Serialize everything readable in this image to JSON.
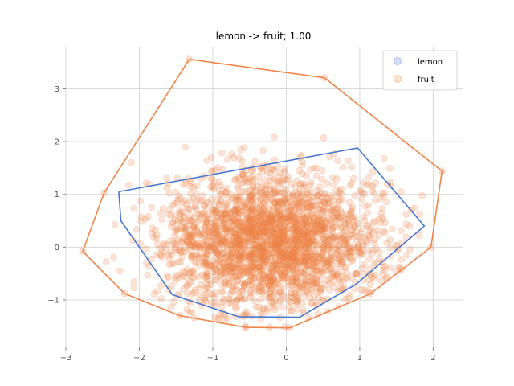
{
  "chart_data": {
    "type": "scatter",
    "title": "lemon -> fruit; 1.00",
    "xlabel": "",
    "ylabel": "",
    "xlim": [
      -3,
      2.4
    ],
    "ylim": [
      -1.9,
      3.8
    ],
    "xticks": [
      -3,
      -2,
      -1,
      0,
      1,
      2
    ],
    "yticks": [
      -1,
      0,
      1,
      2,
      3
    ],
    "grid": true,
    "legend": {
      "placement": "top-right"
    },
    "series": [
      {
        "name": "lemon",
        "color": "#4878cf",
        "hull": [
          [
            -2.28,
            1.05
          ],
          [
            0.97,
            1.88
          ],
          [
            1.88,
            0.4
          ],
          [
            0.95,
            -0.7
          ],
          [
            0.18,
            -1.33
          ],
          [
            -0.65,
            -1.32
          ],
          [
            -1.55,
            -0.9
          ],
          [
            -2.25,
            0.5
          ],
          [
            -2.28,
            1.05
          ]
        ],
        "points": []
      },
      {
        "name": "fruit",
        "color": "#ee854a",
        "hull": [
          [
            -1.32,
            3.56
          ],
          [
            0.52,
            3.21
          ],
          [
            2.12,
            1.44
          ],
          [
            1.97,
            0.0
          ],
          [
            1.15,
            -0.88
          ],
          [
            0.05,
            -1.53
          ],
          [
            -0.55,
            -1.52
          ],
          [
            -1.45,
            -1.3
          ],
          [
            -2.2,
            -0.88
          ],
          [
            -2.77,
            -0.08
          ],
          [
            -2.48,
            1.03
          ],
          [
            -1.32,
            3.56
          ]
        ],
        "cloud": {
          "center": [
            -0.2,
            0.1
          ],
          "spread": [
            0.75,
            0.65
          ],
          "count": 2600,
          "seed": 7
        }
      }
    ]
  }
}
